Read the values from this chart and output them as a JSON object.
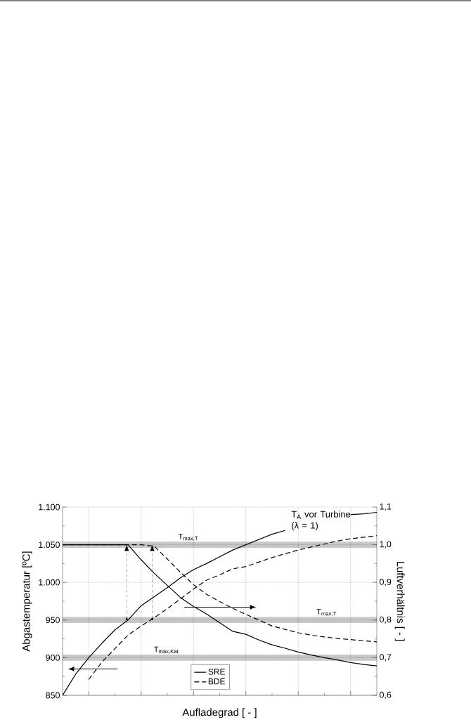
{
  "chart_data": {
    "type": "line",
    "xlabel": "Aufladegrad [ - ]",
    "ylabel": "Abgastemperatur [ºC]",
    "y2label": "Luftverhältnis [ - ]",
    "categories": [
      null,
      null,
      null,
      null,
      null,
      null,
      null,
      null,
      null,
      null,
      null,
      null,
      null,
      null,
      null,
      null,
      null,
      null,
      null,
      null,
      null,
      null,
      null,
      null,
      null
    ],
    "series": [
      {
        "name": "SRE",
        "color": "#000000",
        "line_style": "solid",
        "values": [
          850,
          878,
          900,
          919,
          937,
          950,
          969,
          981,
          993,
          1006,
          1017,
          1025,
          1034,
          1043,
          1050,
          1057,
          1064,
          1069,
          null,
          null,
          null,
          null,
          1090,
          1091,
          1093
        ]
      },
      {
        "name": "BDE",
        "color": "#000000",
        "line_style": "dashed",
        "values": [
          null,
          null,
          871,
          894,
          912,
          930,
          942,
          953,
          965,
          978,
          991,
          1003,
          1010,
          1018,
          1021,
          1027,
          1033,
          1038,
          1043,
          1047,
          1051,
          1055,
          1058,
          1060,
          1062
        ]
      },
      {
        "color": "#000000",
        "line_style": "solid",
        "axis": "y2",
        "values": [
          1.0,
          1.0,
          1.0,
          1.0,
          1.0,
          1.0,
          0.96,
          0.924,
          0.892,
          0.86,
          0.836,
          0.816,
          0.793,
          0.77,
          0.762,
          0.747,
          0.734,
          0.725,
          0.715,
          0.707,
          0.7,
          0.694,
          0.687,
          0.682,
          0.678
        ]
      },
      {
        "color": "#000000",
        "line_style": "dashed",
        "axis": "y2",
        "values": [
          1.0,
          1.0,
          1.0,
          1.0,
          1.0,
          1.0,
          1.0,
          0.996,
          0.962,
          0.927,
          0.894,
          0.868,
          0.849,
          0.831,
          0.815,
          0.8,
          0.784,
          0.775,
          0.766,
          0.76,
          0.755,
          0.751,
          0.748,
          0.745,
          0.742
        ]
      }
    ],
    "ylim": [
      850,
      1100
    ],
    "yticks": [
      850,
      900,
      950,
      {
        "value": 1000,
        "label": "1.000"
      },
      {
        "value": 1050,
        "label": "1.050"
      },
      {
        "value": 1100,
        "label": "1.100"
      }
    ],
    "y2lim": [
      0.6,
      1.1
    ],
    "y2ticks": [
      {
        "value": 0.6,
        "label": "0,6"
      },
      {
        "value": 0.7,
        "label": "0,7"
      },
      {
        "value": 0.8,
        "label": "0,8"
      },
      {
        "value": 0.9,
        "label": "0,9"
      },
      {
        "value": 1.0,
        "label": "1,0"
      },
      {
        "value": 1.1,
        "label": "1,1"
      }
    ],
    "bands": [
      {
        "axis": "y",
        "from": 1046,
        "to": 1054,
        "label": "T$_{max,T}$",
        "color": "#c8c8c8"
      },
      {
        "axis": "y",
        "from": 946,
        "to": 954,
        "label": "T$_{max,T}$",
        "color": "#c8c8c8"
      },
      {
        "axis": "y",
        "from": 896,
        "to": 904,
        "label": "T$_{max,Kat}$",
        "color": "#c8c8c8"
      }
    ],
    "annotations": [
      "T$_{A}$ vor Turbine (λ = 1)"
    ],
    "grid": true,
    "legend": "bottom",
    "tick_labels": "y",
    "marker": "none"
  }
}
